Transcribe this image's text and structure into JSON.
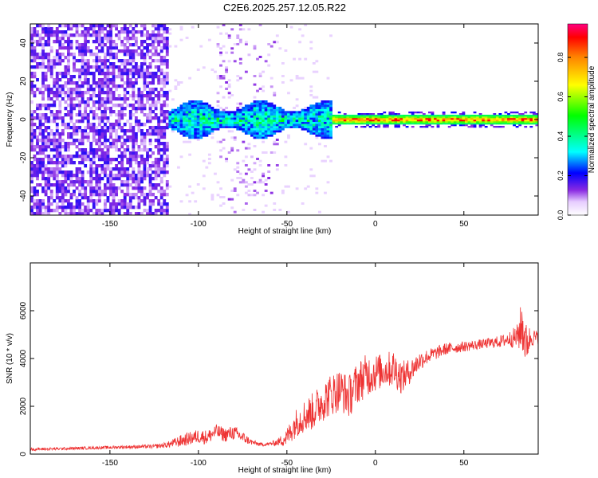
{
  "figure": {
    "title": "C2E6.2025.257.12.05.R22"
  },
  "chart_data": [
    {
      "type": "heatmap",
      "title": "",
      "xlabel": "Height of straight line (km)",
      "ylabel": "Frequency (Hz)",
      "xlim": [
        -195,
        92
      ],
      "ylim": [
        -50,
        50
      ],
      "xticks": [
        -150,
        -100,
        -50,
        0,
        50
      ],
      "yticks": [
        -40,
        -20,
        0,
        20,
        40
      ],
      "grid": false,
      "description_regions": [
        {
          "x_range": [
            -195,
            -117
          ],
          "y_range": [
            -50,
            50
          ],
          "amplitude": 0.15,
          "pattern": "dense noise"
        },
        {
          "x_range": [
            -117,
            -25
          ],
          "y_range": [
            -8,
            7
          ],
          "amplitude": 0.45,
          "pattern": "noisy band"
        },
        {
          "x_range": [
            -25,
            92
          ],
          "y_range": [
            -2,
            2
          ],
          "amplitude": 0.7,
          "pattern": "narrow line"
        }
      ],
      "colorbar": {
        "label": "Normalized spectral amplitude",
        "range": [
          0,
          0.97
        ],
        "ticks": [
          0.0,
          0.2,
          0.4,
          0.6,
          0.8
        ]
      }
    },
    {
      "type": "line",
      "title": "",
      "xlabel": "Height of straight line (km)",
      "ylabel": "SNR (10 * v/v)",
      "xlim": [
        -195,
        92
      ],
      "ylim": [
        0,
        8000
      ],
      "xticks": [
        -150,
        -100,
        -50,
        0,
        50
      ],
      "yticks": [
        0,
        2000,
        4000,
        6000
      ],
      "grid": false,
      "series": [
        {
          "color": "#ee3333",
          "x": [
            -195,
            -180,
            -160,
            -140,
            -125,
            -118,
            -110,
            -100,
            -95,
            -90,
            -85,
            -80,
            -75,
            -70,
            -65,
            -60,
            -55,
            -50,
            -45,
            -40,
            -35,
            -30,
            -25,
            -20,
            -15,
            -10,
            -5,
            0,
            5,
            10,
            15,
            20,
            25,
            30,
            40,
            50,
            60,
            70,
            75,
            80,
            83,
            85,
            88,
            92
          ],
          "y": [
            200,
            220,
            260,
            300,
            320,
            380,
            550,
            750,
            700,
            950,
            800,
            900,
            700,
            500,
            400,
            420,
            500,
            700,
            1300,
            1600,
            1800,
            2200,
            2500,
            2700,
            2400,
            3000,
            3300,
            3400,
            3500,
            3600,
            3200,
            3500,
            3900,
            4100,
            4400,
            4500,
            4600,
            4700,
            4800,
            4900,
            5400,
            4600,
            4900,
            4850
          ],
          "noise": [
            60,
            60,
            60,
            70,
            80,
            120,
            250,
            300,
            300,
            300,
            300,
            300,
            250,
            120,
            80,
            80,
            150,
            400,
            600,
            700,
            800,
            850,
            900,
            900,
            900,
            900,
            900,
            800,
            700,
            800,
            700,
            500,
            400,
            300,
            250,
            220,
            200,
            250,
            300,
            500,
            1200,
            900,
            400,
            300
          ]
        }
      ]
    }
  ]
}
